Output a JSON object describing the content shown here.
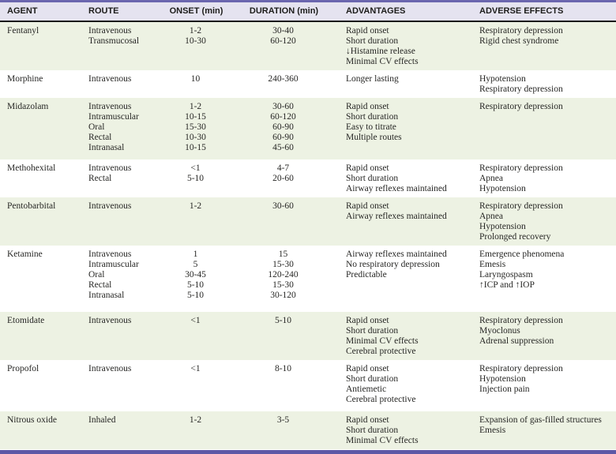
{
  "colors": {
    "header_bg": "#e5e3f0",
    "row_alt_bg": "#edf2e3",
    "accent_purple_top": "#6b66ae",
    "accent_purple_bottom": "#5d58a6",
    "header_rule_black": "#1a1a1a",
    "text": "#272725"
  },
  "table": {
    "columns": [
      {
        "label": "AGENT"
      },
      {
        "label": "ROUTE"
      },
      {
        "label": "ONSET (min)"
      },
      {
        "label": "DURATION (min)"
      },
      {
        "label": "ADVANTAGES"
      },
      {
        "label": "ADVERSE EFFECTS"
      }
    ],
    "rows": [
      {
        "agent": "Fentanyl",
        "route": [
          "Intravenous",
          "Transmucosal"
        ],
        "onset": [
          "1-2",
          "10-30"
        ],
        "duration": [
          "30-40",
          "60-120"
        ],
        "advantages": [
          "Rapid onset",
          "Short duration",
          "↓Histamine release",
          "Minimal CV effects"
        ],
        "adverse": [
          "Respiratory depression",
          "Rigid chest syndrome"
        ]
      },
      {
        "agent": "Morphine",
        "route": [
          "Intravenous"
        ],
        "onset": [
          "10"
        ],
        "duration": [
          "240-360"
        ],
        "advantages": [
          "Longer lasting"
        ],
        "adverse": [
          "Hypotension",
          "Respiratory depression"
        ]
      },
      {
        "agent": "Midazolam",
        "route": [
          "Intravenous",
          "Intramuscular",
          "Oral",
          "Rectal",
          "Intranasal"
        ],
        "onset": [
          "1-2",
          "10-15",
          "15-30",
          "10-30",
          "10-15"
        ],
        "duration": [
          "30-60",
          "60-120",
          "60-90",
          "60-90",
          "45-60"
        ],
        "advantages": [
          "Rapid onset",
          "Short duration",
          "Easy to titrate",
          "Multiple routes"
        ],
        "adverse": [
          "Respiratory depression"
        ]
      },
      {
        "agent": "Methohexital",
        "route": [
          "Intravenous",
          "Rectal"
        ],
        "onset": [
          "<1",
          "5-10"
        ],
        "duration": [
          "4-7",
          "20-60"
        ],
        "advantages": [
          "Rapid onset",
          "Short duration",
          "Airway reflexes maintained"
        ],
        "adverse": [
          "Respiratory depression",
          "Apnea",
          "Hypotension"
        ]
      },
      {
        "agent": "Pentobarbital",
        "route": [
          "Intravenous"
        ],
        "onset": [
          "1-2"
        ],
        "duration": [
          "30-60"
        ],
        "advantages": [
          "Rapid onset",
          "Airway reflexes maintained"
        ],
        "adverse": [
          "Respiratory depression",
          "Apnea",
          "Hypotension",
          "Prolonged recovery"
        ]
      },
      {
        "agent": "Ketamine",
        "route": [
          "Intravenous",
          "Intramuscular",
          "Oral",
          "Rectal",
          "Intranasal"
        ],
        "onset": [
          "1",
          "5",
          "30-45",
          "5-10",
          "5-10"
        ],
        "duration": [
          "15",
          "15-30",
          "120-240",
          "15-30",
          "30-120"
        ],
        "advantages": [
          "Airway reflexes maintained",
          "No respiratory depression",
          "Predictable"
        ],
        "adverse": [
          "Emergence phenomena",
          "Emesis",
          "Laryngospasm",
          "↑ICP and ↑IOP"
        ]
      },
      {
        "agent": "Etomidate",
        "route": [
          "Intravenous"
        ],
        "onset": [
          "<1"
        ],
        "duration": [
          "5-10"
        ],
        "advantages": [
          "Rapid onset",
          "Short duration",
          "Minimal CV effects",
          "Cerebral protective"
        ],
        "adverse": [
          "Respiratory depression",
          "Myoclonus",
          "Adrenal suppression"
        ]
      },
      {
        "agent": "Propofol",
        "route": [
          "Intravenous"
        ],
        "onset": [
          "<1"
        ],
        "duration": [
          "8-10"
        ],
        "advantages": [
          "Rapid onset",
          "Short duration",
          "Antiemetic",
          "Cerebral protective"
        ],
        "adverse": [
          "Respiratory depression",
          "Hypotension",
          "Injection pain"
        ]
      },
      {
        "agent": "Nitrous oxide",
        "route": [
          "Inhaled"
        ],
        "onset": [
          "1-2"
        ],
        "duration": [
          "3-5"
        ],
        "advantages": [
          "Rapid onset",
          "Short duration",
          "Minimal CV effects"
        ],
        "adverse": [
          "Expansion of gas-filled structures",
          "Emesis"
        ]
      }
    ]
  }
}
